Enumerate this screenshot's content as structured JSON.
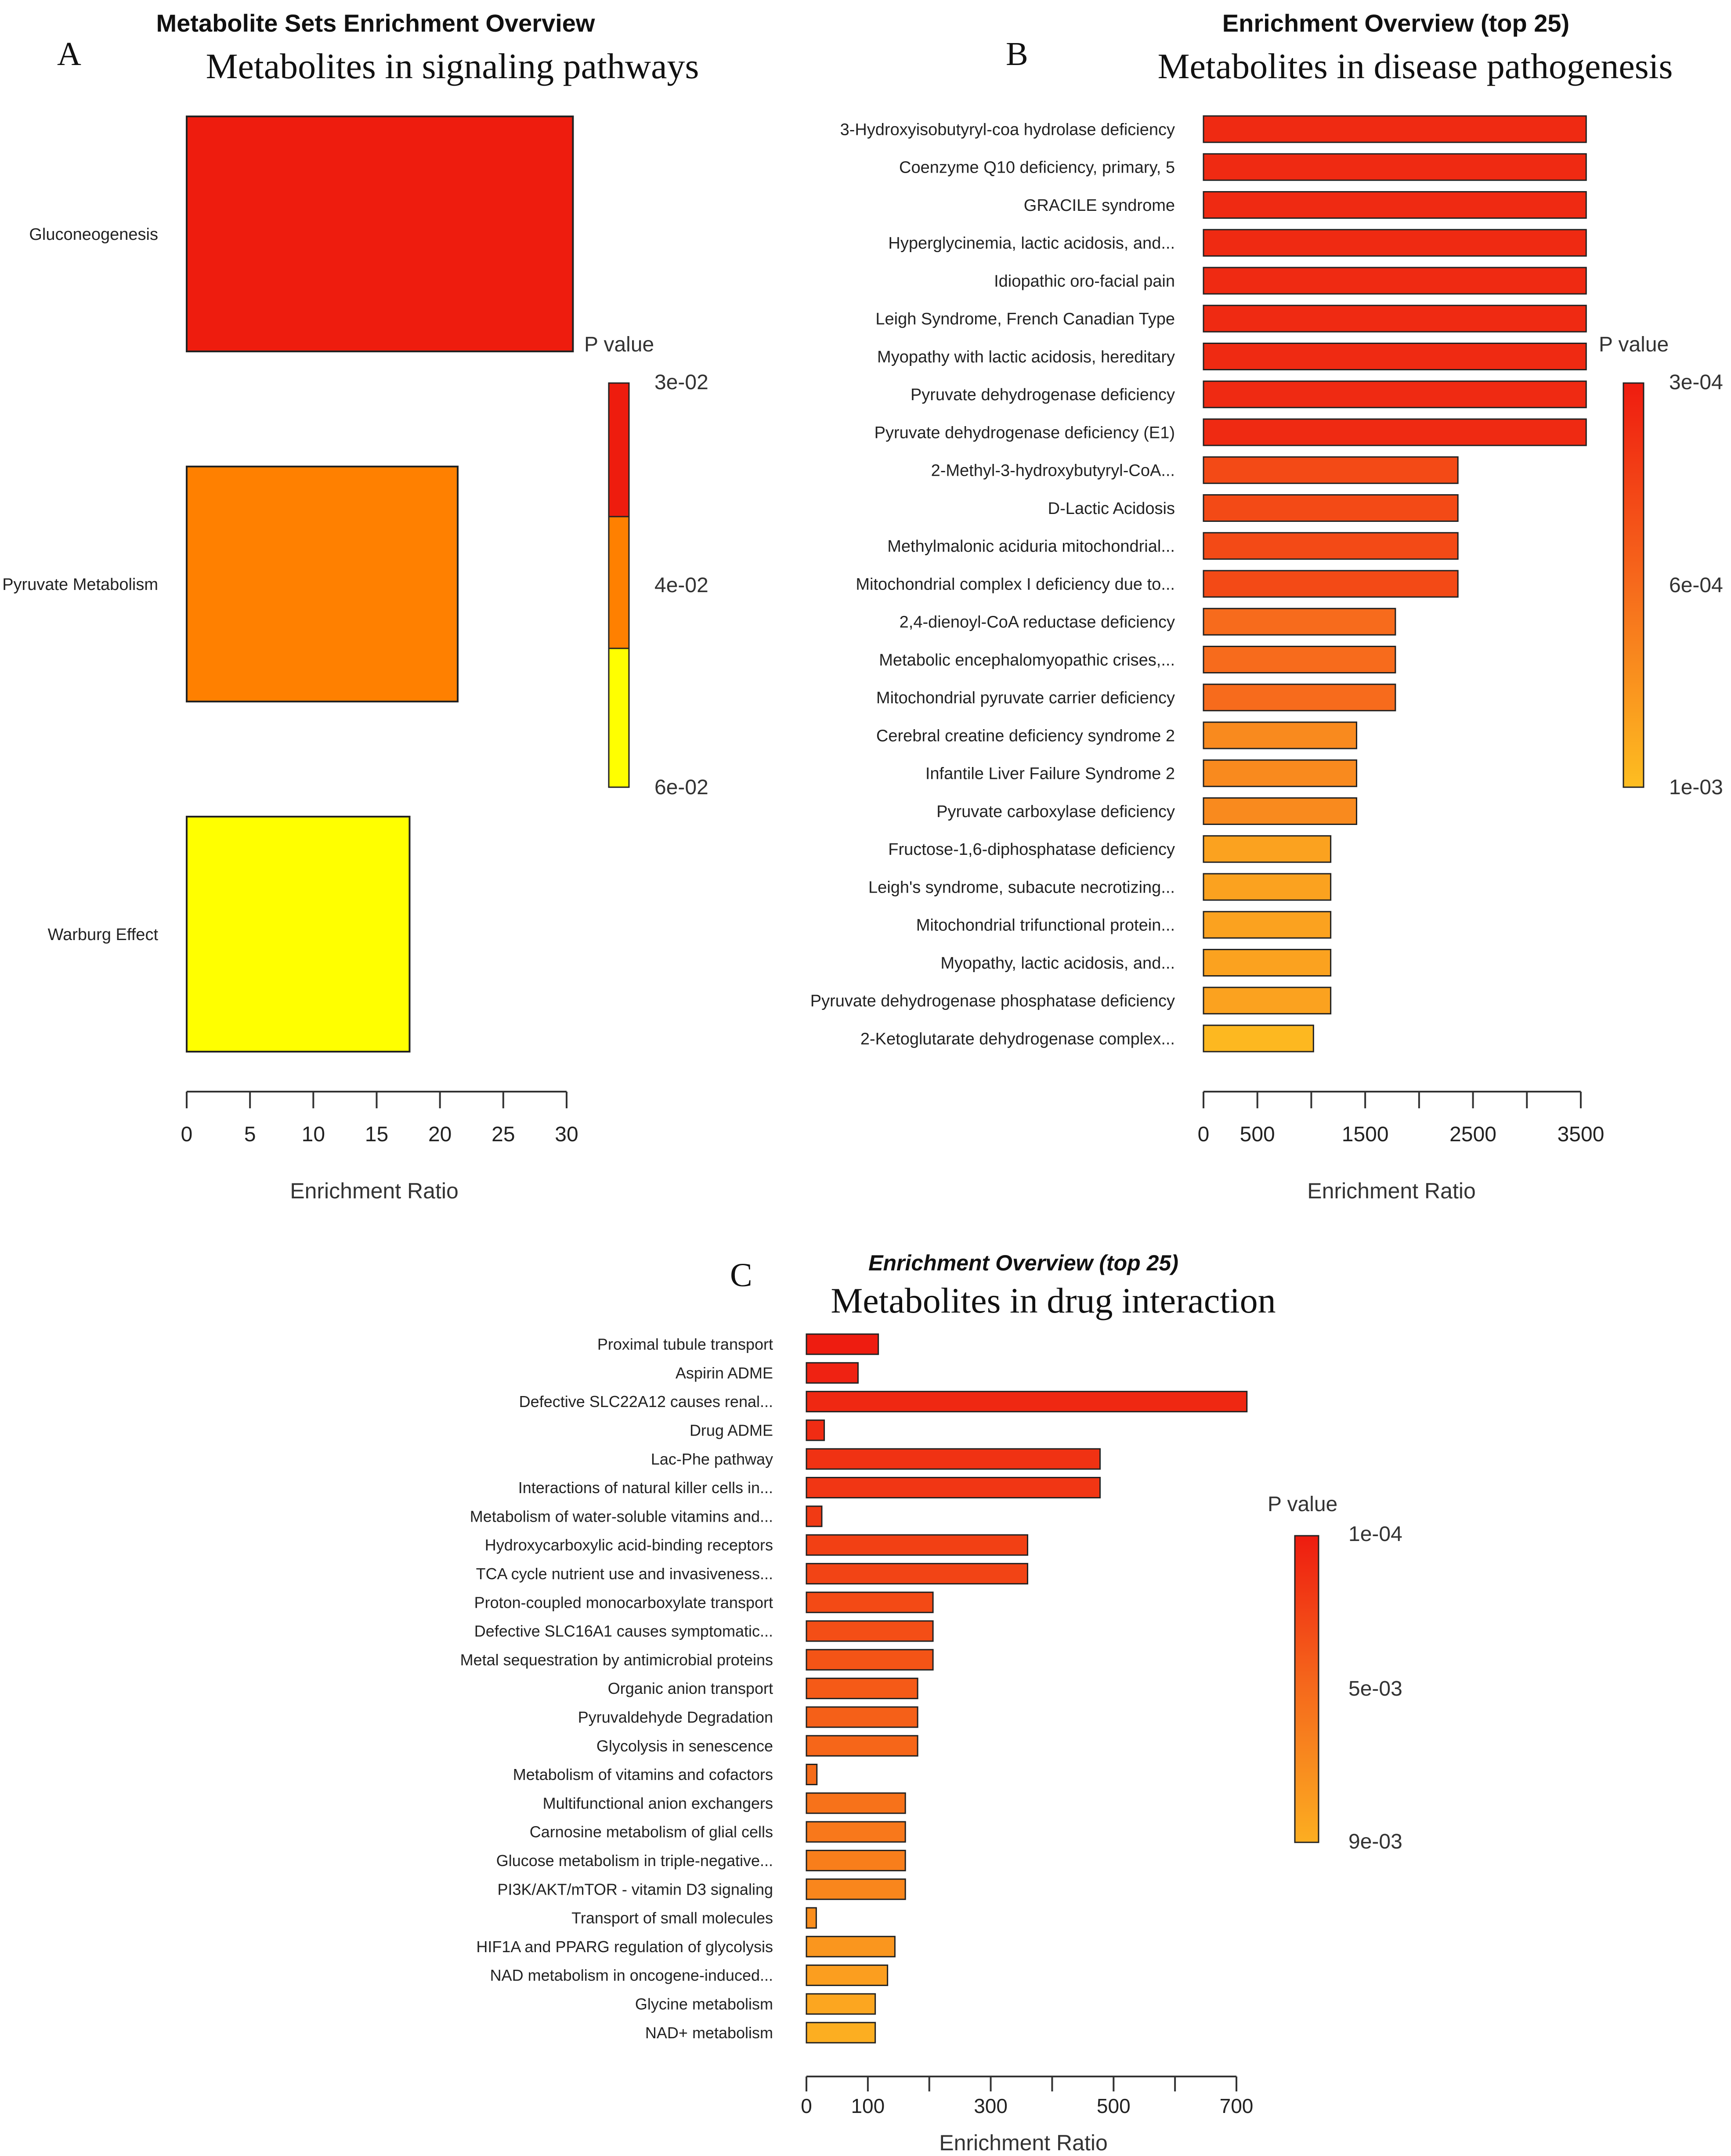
{
  "panels": {
    "A": {
      "letter": "A",
      "title": "Metabolite Sets Enrichment Overview",
      "subtitle": "Metabolites in signaling pathways"
    },
    "B": {
      "letter": "B",
      "title": "Enrichment Overview (top 25)",
      "subtitle": "Metabolites in disease pathogenesis"
    },
    "C": {
      "letter": "C",
      "title": "Enrichment Overview (top 25)",
      "subtitle": "Metabolites in drug interaction"
    }
  },
  "chart_data": [
    {
      "id": "A",
      "type": "bar",
      "orientation": "horizontal",
      "title": "Metabolite Sets Enrichment Overview",
      "xlabel": "Enrichment Ratio",
      "ylabel": "",
      "xlim": [
        0,
        30
      ],
      "xticks": [
        "0",
        "5",
        "10",
        "15",
        "20",
        "25",
        "30"
      ],
      "categories": [
        "Gluconeogenesis",
        "Pyruvate Metabolism",
        "Warburg Effect"
      ],
      "values": [
        30.5,
        21.4,
        17.6
      ],
      "colors": [
        "#ee1c0e",
        "#ff8000",
        "#ffff00"
      ],
      "legend": {
        "title": "P value",
        "labels": [
          "3e-02",
          "4e-02",
          "6e-02"
        ],
        "colors": [
          "#ee1c0e",
          "#ff8000",
          "#ffff00"
        ],
        "gradient": false
      }
    },
    {
      "id": "B",
      "type": "bar",
      "orientation": "horizontal",
      "title": "Enrichment Overview (top 25)",
      "xlabel": "Enrichment Ratio",
      "ylabel": "",
      "xlim": [
        0,
        3500
      ],
      "xticks": [
        "0",
        "500",
        "1500",
        "2500",
        "3500"
      ],
      "categories": [
        "3-Hydroxyisobutyryl-coa hydrolase deficiency",
        "Coenzyme Q10 deficiency, primary, 5",
        "GRACILE syndrome",
        "Hyperglycinemia, lactic acidosis, and...",
        "Idiopathic oro-facial pain",
        "Leigh Syndrome, French Canadian Type",
        "Myopathy with lactic acidosis, hereditary",
        "Pyruvate dehydrogenase deficiency",
        "Pyruvate dehydrogenase deficiency (E1)",
        "2-Methyl-3-hydroxybutyryl-CoA...",
        "D-Lactic Acidosis",
        "Methylmalonic aciduria mitochondrial...",
        "Mitochondrial complex I deficiency due to...",
        "2,4-dienoyl-CoA reductase deficiency",
        "Metabolic encephalomyopathic crises,...",
        "Mitochondrial pyruvate carrier deficiency",
        "Cerebral creatine deficiency syndrome 2",
        "Infantile Liver Failure Syndrome 2",
        "Pyruvate carboxylase deficiency",
        "Fructose-1,6-diphosphatase deficiency",
        "Leigh's syndrome, subacute necrotizing...",
        "Mitochondrial trifunctional protein...",
        "Myopathy, lactic acidosis, and...",
        "Pyruvate dehydrogenase phosphatase deficiency",
        "2-Ketoglutarate dehydrogenase complex..."
      ],
      "values": [
        3550,
        3550,
        3550,
        3550,
        3550,
        3550,
        3550,
        3550,
        3550,
        2360,
        2360,
        2360,
        2360,
        1780,
        1780,
        1780,
        1420,
        1420,
        1420,
        1180,
        1180,
        1180,
        1180,
        1180,
        1020
      ],
      "colors": [
        "#ef2a12",
        "#ef2a12",
        "#ef2a12",
        "#ef2a12",
        "#ef2a12",
        "#ef2a12",
        "#ef2a12",
        "#ef2a12",
        "#ef2a12",
        "#f34a16",
        "#f34a16",
        "#f34a16",
        "#f34a16",
        "#f76b1c",
        "#f76b1c",
        "#f76b1c",
        "#f98a1e",
        "#f98a1e",
        "#f98a1e",
        "#fba21f",
        "#fba21f",
        "#fba21f",
        "#fba21f",
        "#fba21f",
        "#fdb820"
      ],
      "legend": {
        "title": "P value",
        "labels": [
          "3e-04",
          "6e-04",
          "1e-03"
        ],
        "colors": [
          "#ef1c10",
          "#f66a1c",
          "#fdbe21"
        ],
        "gradient": true
      }
    },
    {
      "id": "C",
      "type": "bar",
      "orientation": "horizontal",
      "title": "Enrichment Overview (top 25)",
      "xlabel": "Enrichment Ratio",
      "ylabel": "",
      "xlim": [
        0,
        700
      ],
      "xticks": [
        "0",
        "100",
        "300",
        "500",
        "700"
      ],
      "categories": [
        "Proximal tubule transport",
        "Aspirin ADME",
        "Defective SLC22A12 causes renal...",
        "Drug ADME",
        "Lac-Phe pathway",
        "Interactions of natural killer cells in...",
        "Metabolism of water-soluble vitamins and...",
        "Hydroxycarboxylic acid-binding receptors",
        "TCA cycle nutrient use and invasiveness...",
        "Proton-coupled monocarboxylate transport",
        "Defective SLC16A1 causes symptomatic...",
        "Metal sequestration by antimicrobial proteins",
        "Organic anion transport",
        "Pyruvaldehyde Degradation",
        "Glycolysis in senescence",
        "Metabolism of vitamins and cofactors",
        "Multifunctional anion exchangers",
        "Carnosine metabolism of glial cells",
        "Glucose metabolism in triple-negative...",
        "PI3K/AKT/mTOR - vitamin D3 signaling",
        "Transport of small molecules",
        "HIF1A and PPARG regulation of glycolysis",
        "NAD metabolism in oncogene-induced...",
        "Glycine metabolism",
        "NAD+ metabolism"
      ],
      "values": [
        117,
        84,
        717,
        29,
        478,
        478,
        25,
        360,
        360,
        206,
        206,
        206,
        181,
        181,
        181,
        17,
        161,
        161,
        161,
        161,
        16,
        144,
        132,
        112,
        112
      ],
      "colors": [
        "#ee1c10",
        "#ef2212",
        "#ef2812",
        "#f02c13",
        "#f03213",
        "#f13614",
        "#f13a14",
        "#f24014",
        "#f24415",
        "#f34a15",
        "#f44e16",
        "#f45416",
        "#f55a17",
        "#f56018",
        "#f66619",
        "#f66c19",
        "#f7721a",
        "#f8781b",
        "#f87e1b",
        "#f9861c",
        "#fa8e1d",
        "#fa961e",
        "#fb9e1f",
        "#fca620",
        "#fcae21"
      ],
      "legend": {
        "title": "P value",
        "labels": [
          "1e-04",
          "5e-03",
          "9e-03"
        ],
        "colors": [
          "#ee1c10",
          "#f56a1c",
          "#fcae21"
        ],
        "gradient": true
      }
    }
  ]
}
